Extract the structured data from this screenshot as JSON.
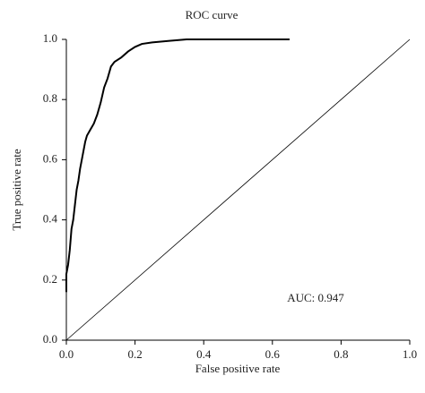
{
  "chart_data": {
    "type": "line",
    "title": "ROC curve",
    "x_label": "False positive rate",
    "y_label": "True positive rate",
    "annotation": "AUC: 0.947",
    "series": [
      {
        "color": "#000000",
        "x": [
          0,
          0,
          0.005,
          0.01,
          0.015,
          0.02,
          0.025,
          0.03,
          0.035,
          0.04,
          0.045,
          0.05,
          0.055,
          0.06,
          0.07,
          0.08,
          0.09,
          0.1,
          0.11,
          0.12,
          0.13,
          0.14,
          0.16,
          0.18,
          0.2,
          0.22,
          0.25,
          0.3,
          0.35,
          0.65
        ],
        "y": [
          0.16,
          0.22,
          0.25,
          0.3,
          0.37,
          0.4,
          0.45,
          0.5,
          0.53,
          0.57,
          0.6,
          0.63,
          0.66,
          0.68,
          0.7,
          0.72,
          0.75,
          0.79,
          0.84,
          0.87,
          0.91,
          0.925,
          0.94,
          0.96,
          0.975,
          0.985,
          0.99,
          0.995,
          1,
          1
        ]
      }
    ],
    "reference_line": {
      "x": [
        0,
        1
      ],
      "y": [
        0,
        1
      ]
    },
    "xlim": [
      0,
      1
    ],
    "ylim": [
      0,
      1
    ],
    "xticks": [
      {
        "value": 0,
        "label": "0.0"
      },
      {
        "value": 0.2,
        "label": "0.2"
      },
      {
        "value": 0.4,
        "label": "0.4"
      },
      {
        "value": 0.6,
        "label": "0.6"
      },
      {
        "value": 0.8,
        "label": "0.8"
      },
      {
        "value": 1,
        "label": "1.0"
      }
    ],
    "yticks": [
      {
        "value": 0,
        "label": "0.0"
      },
      {
        "value": 0.2,
        "label": "0.2"
      },
      {
        "value": 0.4,
        "label": "0.4"
      },
      {
        "value": 0.6,
        "label": "0.6"
      },
      {
        "value": 0.8,
        "label": "0.8"
      },
      {
        "value": 1,
        "label": "1.0"
      }
    ]
  }
}
